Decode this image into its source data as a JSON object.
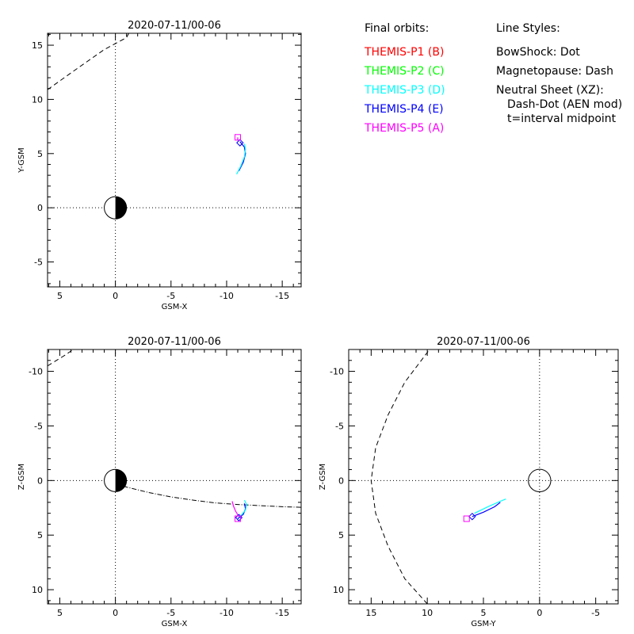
{
  "legend": {
    "orbits_title": "Final orbits:",
    "orbits": [
      {
        "label": "THEMIS-P1 (B)",
        "color": "#ff0000"
      },
      {
        "label": "THEMIS-P2 (C)",
        "color": "#00ff00"
      },
      {
        "label": "THEMIS-P3 (D)",
        "color": "#00ffff"
      },
      {
        "label": "THEMIS-P4 (E)",
        "color": "#0000ff"
      },
      {
        "label": "THEMIS-P5 (A)",
        "color": "#ff00ff"
      }
    ],
    "styles_title": "Line Styles:",
    "styles": [
      "BowShock: Dot",
      "Magnetopause: Dash",
      "Neutral Sheet (XZ):",
      "Dash-Dot (AEN mod)",
      "t=interval midpoint"
    ]
  },
  "chart_data": [
    {
      "type": "line",
      "title": "2020-07-11/00-06",
      "xlabel": "GSM-X",
      "ylabel": "Y-GSM",
      "xlim": [
        6.1,
        -16.7
      ],
      "ylim": [
        16.1,
        -7.3
      ],
      "xticks": [
        5,
        0,
        -5,
        -10,
        -15
      ],
      "yticks": [
        -5,
        0,
        5,
        10,
        15
      ],
      "earth": "day-night",
      "series": [
        {
          "color": "#0000ff",
          "points": [
            [
              -11.1,
              3.4
            ],
            [
              -11.5,
              4.2
            ],
            [
              -11.7,
              5.0
            ],
            [
              -11.6,
              5.6
            ],
            [
              -11.2,
              6.1
            ]
          ]
        },
        {
          "color": "#00ffff",
          "points": [
            [
              -10.9,
              3.1
            ],
            [
              -11.3,
              3.9
            ],
            [
              -11.6,
              4.7
            ],
            [
              -11.7,
              5.4
            ],
            [
              -11.6,
              5.9
            ]
          ]
        },
        {
          "color": "#ff00ff",
          "points": [
            [
              -11.0,
              6.2
            ],
            [
              -11.0,
              6.5
            ]
          ]
        }
      ],
      "markers": [
        {
          "shape": "diamond",
          "color": "#0000ff",
          "x": -11.2,
          "y": 6.0
        },
        {
          "shape": "square",
          "color": "#ff00ff",
          "x": -11.0,
          "y": 6.5
        }
      ],
      "boundaries": [
        {
          "style": "dash",
          "points": [
            [
              6.1,
              10.9
            ],
            [
              3.5,
              12.8
            ],
            [
              1.0,
              14.6
            ],
            [
              -1.0,
              15.7
            ],
            [
              -1.2,
              16.1
            ]
          ]
        }
      ]
    },
    {
      "type": "line",
      "title": "2020-07-11/00-06",
      "xlabel": "GSM-X",
      "ylabel": "Z-GSM",
      "xlim": [
        6.1,
        -16.7
      ],
      "ylim": [
        -12.0,
        11.3
      ],
      "xticks": [
        5,
        0,
        -5,
        -10,
        -15
      ],
      "yticks": [
        -10,
        -5,
        0,
        5,
        10
      ],
      "earth": "day-night",
      "series": [
        {
          "color": "#0000ff",
          "points": [
            [
              -11.0,
              3.5
            ],
            [
              -11.5,
              3.1
            ],
            [
              -11.7,
              2.6
            ],
            [
              -11.6,
              2.1
            ]
          ]
        },
        {
          "color": "#00ffff",
          "points": [
            [
              -11.3,
              3.2
            ],
            [
              -11.7,
              2.7
            ],
            [
              -11.8,
              2.2
            ],
            [
              -11.6,
              1.8
            ]
          ]
        },
        {
          "color": "#ff00ff",
          "points": [
            [
              -11.1,
              3.3
            ],
            [
              -10.8,
              2.8
            ],
            [
              -10.6,
              2.3
            ],
            [
              -10.5,
              1.9
            ]
          ]
        }
      ],
      "markers": [
        {
          "shape": "diamond",
          "color": "#0000ff",
          "x": -11.1,
          "y": 3.4
        },
        {
          "shape": "square",
          "color": "#ff00ff",
          "x": -11.0,
          "y": 3.5
        }
      ],
      "boundaries": [
        {
          "style": "dashdot",
          "points": [
            [
              0,
              0.2
            ],
            [
              -1,
              0.6
            ],
            [
              -3,
              1.1
            ],
            [
              -5,
              1.5
            ],
            [
              -7,
              1.8
            ],
            [
              -9,
              2.05
            ],
            [
              -11,
              2.2
            ],
            [
              -13,
              2.3
            ],
            [
              -15,
              2.4
            ],
            [
              -16.7,
              2.45
            ]
          ]
        },
        {
          "style": "dash",
          "points": [
            [
              6.1,
              -10.5
            ],
            [
              4.5,
              -11.5
            ],
            [
              3.8,
              -12.0
            ]
          ]
        }
      ]
    },
    {
      "type": "line",
      "title": "2020-07-11/00-06",
      "xlabel": "GSM-Y",
      "ylabel": "Z-GSM",
      "xlim": [
        17.0,
        -7.0
      ],
      "ylim": [
        -12.0,
        11.3
      ],
      "xticks": [
        15,
        10,
        5,
        0,
        -5
      ],
      "yticks": [
        -10,
        -5,
        0,
        5,
        10
      ],
      "earth": "outline",
      "series": [
        {
          "color": "#0000ff",
          "points": [
            [
              6.0,
              3.3
            ],
            [
              5.0,
              2.9
            ],
            [
              4.0,
              2.4
            ],
            [
              3.5,
              2.0
            ]
          ]
        },
        {
          "color": "#00ffff",
          "points": [
            [
              5.8,
              3.0
            ],
            [
              4.6,
              2.4
            ],
            [
              3.5,
              1.9
            ],
            [
              3.0,
              1.7
            ]
          ]
        }
      ],
      "markers": [
        {
          "shape": "diamond",
          "color": "#0000ff",
          "x": 6.0,
          "y": 3.3
        },
        {
          "shape": "square",
          "color": "#ff00ff",
          "x": 6.5,
          "y": 3.5
        }
      ],
      "boundaries": [
        {
          "style": "dash",
          "points": [
            [
              10.0,
              11.3
            ],
            [
              12.0,
              9.0
            ],
            [
              13.5,
              6.0
            ],
            [
              14.6,
              3.0
            ],
            [
              15.0,
              0.0
            ],
            [
              14.6,
              -3.0
            ],
            [
              13.5,
              -6.0
            ],
            [
              12.0,
              -9.0
            ],
            [
              9.8,
              -12.0
            ]
          ]
        }
      ]
    }
  ]
}
